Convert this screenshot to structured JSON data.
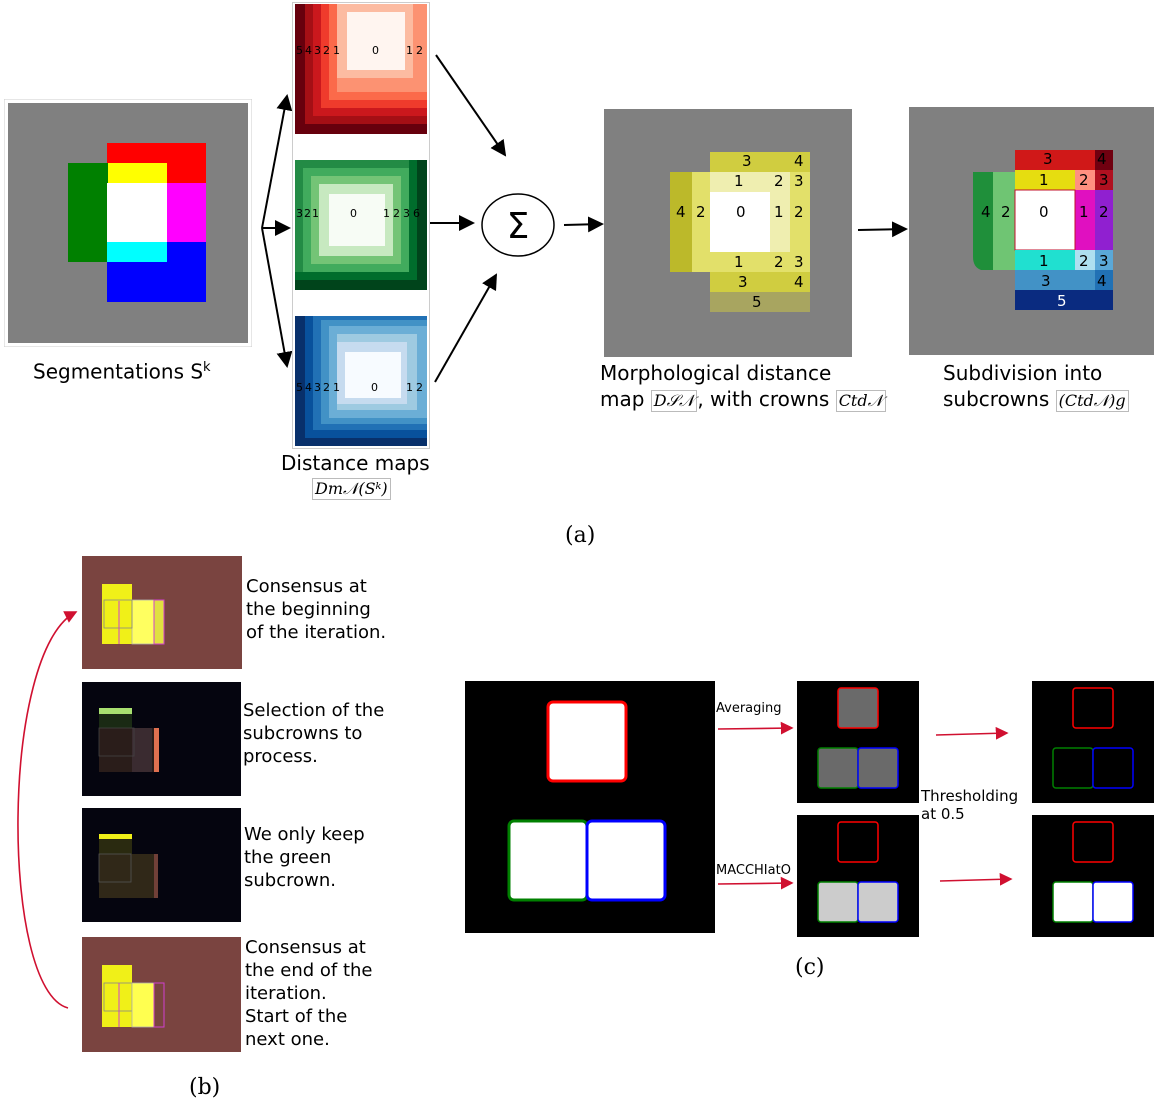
{
  "panel_a": {
    "segmentations_label": "Segmentations S",
    "segmentations_sup": "k",
    "distance_maps_label": "Distance maps",
    "distance_maps_math": "Dm𝒩(Sᵏ)",
    "sum_symbol": "Σ",
    "morph_label_line1": "Morphological distance",
    "morph_label_line2_pre": "map",
    "morph_math1": "D𝒮𝒩",
    "morph_label_line2_mid": ", with crowns",
    "morph_math2": "Ctd𝒩",
    "subdiv_label_line1": "Subdivision into",
    "subdiv_label_line2": "subcrowns",
    "subdiv_math": "(Ctd𝒩)g",
    "caption": "(a)",
    "map_numbers_red": [
      "5",
      "4",
      "3",
      "2",
      "1",
      "0",
      "1",
      "2"
    ],
    "map_numbers_green": [
      "3",
      "2",
      "1",
      "0",
      "1",
      "2",
      "3",
      "6"
    ],
    "map_numbers_blue": [
      "5",
      "4",
      "3",
      "2",
      "1",
      "0",
      "1",
      "2"
    ],
    "morph_numbers": {
      "r1": [
        "3",
        "4"
      ],
      "r2": [
        "1",
        "2",
        "3"
      ],
      "r3": [
        "4",
        "2",
        "0",
        "1",
        "2"
      ],
      "r4": [
        "1",
        "2",
        "3"
      ],
      "r5": [
        "3",
        "4"
      ],
      "r6": [
        "5"
      ]
    },
    "subdiv_numbers": {
      "r1": [
        "3",
        "4"
      ],
      "r2": [
        "1",
        "2",
        "3"
      ],
      "r3": [
        "4",
        "2",
        "0",
        "1",
        "2"
      ],
      "r4": [
        "1",
        "2",
        "3"
      ],
      "r5": [
        "3",
        "4"
      ],
      "r6": [
        "5"
      ]
    },
    "colors": {
      "gray": "#808080",
      "red": "#ff0000",
      "yellow": "#ffff00",
      "green": "#008000",
      "magenta": "#ff00ff",
      "cyan": "#00ffff",
      "blue": "#0000ff",
      "olive": "#c8c030"
    }
  },
  "panel_b": {
    "step1": "Consensus at\nthe beginning\nof the iteration.",
    "step2": "Selection of the\nsubcrowns to\nprocess.",
    "step3": "We only keep\nthe green\nsubcrown.",
    "step4": "Consensus at\nthe end of the\niteration.\nStart of the\nnext one.",
    "caption": "(b)",
    "colors": {
      "brown": "#7a4440",
      "dark": "#05050f",
      "yellow": "#ffff00"
    }
  },
  "panel_c": {
    "averaging_label": "Averaging",
    "macchiato_label": "MACCHIatO",
    "thresholding_label": "Thresholding\nat 0.5",
    "caption": "(c)",
    "colors": {
      "red": "#ff0000",
      "green": "#008000",
      "blue": "#0000ff",
      "arrow": "#d01030"
    }
  }
}
